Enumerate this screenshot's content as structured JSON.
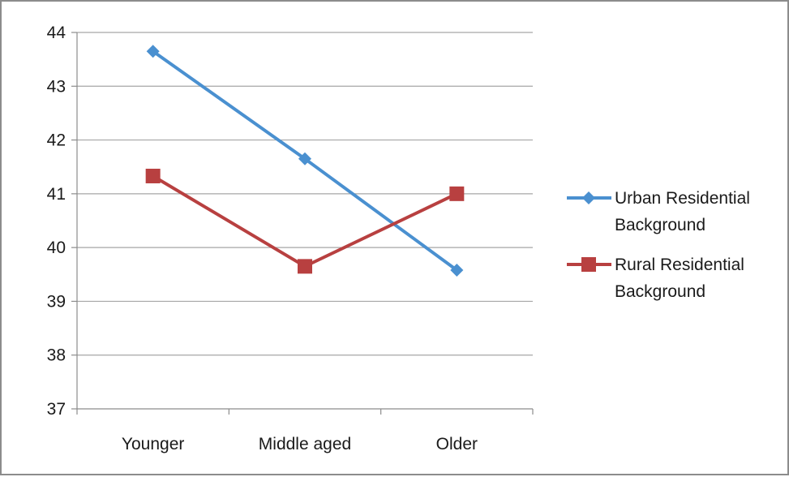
{
  "chart_data": {
    "type": "line",
    "categories": [
      "Younger",
      "Middle aged",
      "Older"
    ],
    "series": [
      {
        "name": "Urban Residential Background",
        "values": [
          43.65,
          41.65,
          39.58
        ],
        "color": "#4a90d0",
        "marker": "diamond"
      },
      {
        "name": "Rural Residential Background",
        "values": [
          41.33,
          39.65,
          41.0
        ],
        "color": "#b84040",
        "marker": "square"
      }
    ],
    "ylim": [
      37,
      44
    ],
    "yticks": [
      37,
      38,
      39,
      40,
      41,
      42,
      43,
      44
    ],
    "grid": true,
    "legend_position": "right",
    "legend": [
      {
        "lines": [
          "Urban Residential",
          "Background"
        ]
      },
      {
        "lines": [
          "Rural Residential",
          "Background"
        ]
      }
    ]
  }
}
